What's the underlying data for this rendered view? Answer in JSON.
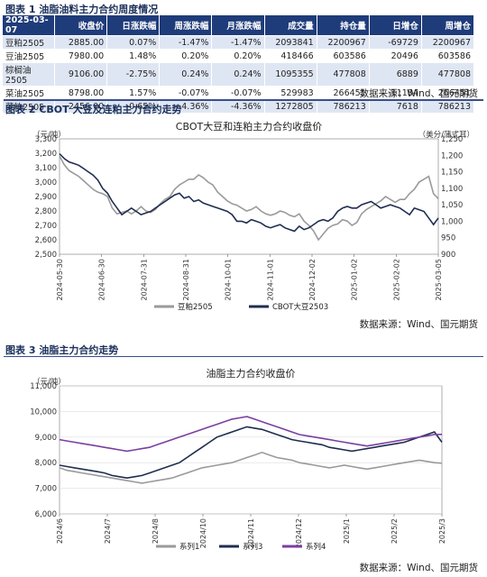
{
  "table1": {
    "title": "图表 1 油脂油料主力合约周度情况",
    "columns": [
      "2025-03-07",
      "收盘价",
      "日涨跌幅",
      "周涨跌幅",
      "月涨跌幅",
      "成交量",
      "持仓量",
      "日增仓",
      "周增仓"
    ],
    "rows": [
      [
        "豆粕2505",
        "2885.00",
        "0.07%",
        "-1.47%",
        "-1.47%",
        "2093841",
        "2200967",
        "-69729",
        "2200967"
      ],
      [
        "豆油2505",
        "7980.00",
        "1.48%",
        "0.20%",
        "0.20%",
        "418466",
        "603586",
        "20496",
        "603586"
      ],
      [
        "棕榈油2505",
        "9106.00",
        "-2.75%",
        "0.24%",
        "0.24%",
        "1095355",
        "477808",
        "6889",
        "477808"
      ],
      [
        "菜油2505",
        "8798.00",
        "1.57%",
        "-0.07%",
        "-0.07%",
        "529983",
        "266451",
        "-11184",
        "266451"
      ],
      [
        "菜粕2505",
        "2456.00",
        "-0.65%",
        "-4.36%",
        "-4.36%",
        "1272805",
        "786213",
        "7618",
        "786213"
      ]
    ],
    "source": "数据来源：Wind、国元期货"
  },
  "chart_data": [
    {
      "type": "line",
      "section_title": "图表 2 CBOT 大豆及连粕主力合约走势",
      "title": "CBOT大豆和连粕主力合约收盘价",
      "ylabel_left": "（元/吨）",
      "ylabel_right": "（美分/蒲式耳）",
      "ylim_left": [
        2500,
        3300
      ],
      "yticks_left": [
        2500,
        2600,
        2700,
        2800,
        2900,
        3000,
        3100,
        3200,
        3300
      ],
      "ylim_right": [
        900,
        1250
      ],
      "yticks_right": [
        900,
        950,
        1000,
        1050,
        1100,
        1150,
        1200,
        1250
      ],
      "xticks": [
        "2024-05-30",
        "2024-06-30",
        "2024-07-31",
        "2024-08-31",
        "2024-10-01",
        "2024-11-01",
        "2024-12-02",
        "2025-01-02",
        "2025-02-02",
        "2025-03-05"
      ],
      "legend_position": "bottom",
      "series": [
        {
          "name": "豆粕2505",
          "axis": "left",
          "color": "#9a9a9a",
          "values": [
            3180,
            3120,
            3080,
            3060,
            3040,
            3010,
            2980,
            2950,
            2930,
            2920,
            2900,
            2820,
            2780,
            2790,
            2800,
            2780,
            2800,
            2830,
            2800,
            2790,
            2810,
            2850,
            2880,
            2900,
            2950,
            2980,
            3000,
            3020,
            3020,
            3050,
            3030,
            3000,
            2980,
            2930,
            2900,
            2870,
            2850,
            2840,
            2820,
            2800,
            2810,
            2830,
            2800,
            2780,
            2770,
            2780,
            2800,
            2790,
            2770,
            2760,
            2780,
            2730,
            2700,
            2660,
            2600,
            2640,
            2680,
            2700,
            2710,
            2740,
            2730,
            2700,
            2720,
            2780,
            2810,
            2830,
            2850,
            2870,
            2900,
            2880,
            2860,
            2880,
            2880,
            2920,
            2950,
            3000,
            3020,
            3040,
            2920,
            2885
          ]
        },
        {
          "name": "CBOT大豆2503",
          "axis": "right",
          "color": "#1f2d4f",
          "values": [
            1205,
            1190,
            1180,
            1175,
            1170,
            1160,
            1150,
            1140,
            1125,
            1100,
            1085,
            1060,
            1040,
            1020,
            1030,
            1040,
            1030,
            1020,
            1025,
            1030,
            1040,
            1050,
            1060,
            1070,
            1080,
            1085,
            1070,
            1075,
            1060,
            1065,
            1055,
            1050,
            1045,
            1040,
            1035,
            1030,
            1020,
            1000,
            1000,
            995,
            1005,
            1000,
            995,
            985,
            980,
            985,
            990,
            980,
            975,
            970,
            985,
            975,
            980,
            990,
            1000,
            1005,
            1000,
            1010,
            1030,
            1040,
            1045,
            1040,
            1040,
            1050,
            1055,
            1060,
            1050,
            1040,
            1045,
            1050,
            1045,
            1040,
            1030,
            1020,
            1040,
            1035,
            1030,
            1010,
            990,
            1010
          ]
        }
      ],
      "source": "数据来源：Wind、国元期货"
    },
    {
      "type": "line",
      "section_title": "图表 3 油脂主力合约走势",
      "title": "油脂主力合约收盘价",
      "ylabel_left": "（元/吨）",
      "ylim_left": [
        6000,
        11000
      ],
      "yticks_left": [
        6000,
        7000,
        8000,
        9000,
        10000,
        11000
      ],
      "xticks": [
        "2024/6",
        "2024/7",
        "2024/8",
        "2024/10",
        "2024/11",
        "2024/12",
        "2025/1",
        "2025/2",
        "2025/3"
      ],
      "legend_position": "bottom",
      "series": [
        {
          "name": "系列1",
          "color": "#9a9a9a",
          "values": [
            7800,
            7700,
            7650,
            7600,
            7550,
            7500,
            7450,
            7400,
            7350,
            7300,
            7250,
            7200,
            7250,
            7300,
            7350,
            7400,
            7500,
            7600,
            7700,
            7800,
            7850,
            7900,
            7950,
            8000,
            8100,
            8200,
            8300,
            8400,
            8300,
            8200,
            8150,
            8100,
            8000,
            7950,
            7900,
            7850,
            7800,
            7850,
            7900,
            7850,
            7800,
            7750,
            7800,
            7850,
            7900,
            7950,
            8000,
            8050,
            8100,
            8050,
            8000,
            7980
          ]
        },
        {
          "name": "系列3",
          "color": "#1f2d4f",
          "values": [
            7900,
            7850,
            7800,
            7750,
            7700,
            7650,
            7600,
            7500,
            7450,
            7400,
            7450,
            7500,
            7600,
            7700,
            7800,
            7900,
            8000,
            8200,
            8400,
            8600,
            8800,
            9000,
            9100,
            9200,
            9300,
            9400,
            9350,
            9300,
            9200,
            9100,
            9000,
            8900,
            8850,
            8800,
            8750,
            8700,
            8600,
            8550,
            8500,
            8450,
            8500,
            8550,
            8600,
            8650,
            8700,
            8750,
            8800,
            8900,
            9000,
            9100,
            9200,
            8798
          ]
        },
        {
          "name": "系列4",
          "color": "#7a3fa0",
          "values": [
            8900,
            8850,
            8800,
            8750,
            8700,
            8650,
            8600,
            8550,
            8500,
            8450,
            8500,
            8550,
            8600,
            8700,
            8800,
            8900,
            9000,
            9100,
            9200,
            9300,
            9400,
            9500,
            9600,
            9700,
            9750,
            9800,
            9700,
            9600,
            9500,
            9400,
            9300,
            9200,
            9100,
            9050,
            9000,
            8950,
            8900,
            8850,
            8800,
            8750,
            8700,
            8650,
            8700,
            8750,
            8800,
            8850,
            8900,
            8950,
            9000,
            9050,
            9100,
            9106
          ]
        }
      ],
      "source": "数据来源：Wind、国元期货"
    }
  ]
}
